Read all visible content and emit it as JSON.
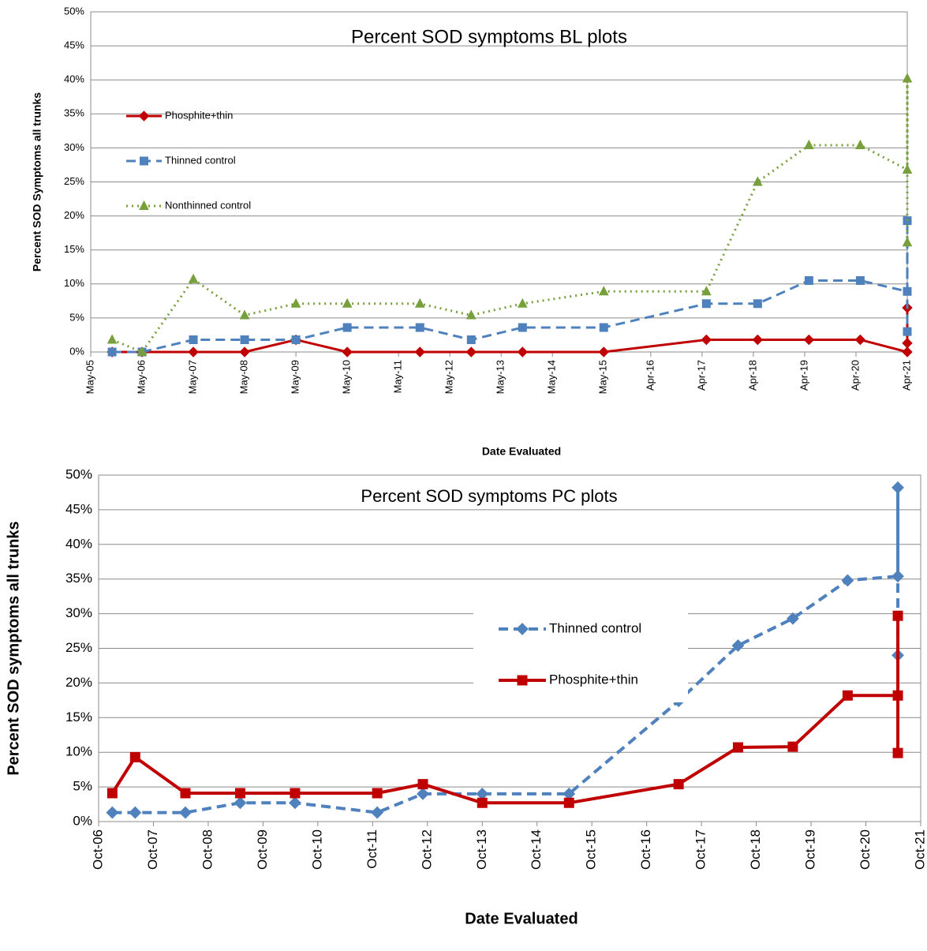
{
  "chart_data": [
    {
      "type": "line",
      "title": "Percent  SOD symptoms BL plots",
      "x_label": "Date Evaluated",
      "y_label": "Percent SOD  Symptoms  all trunks",
      "legend": "upper left",
      "grid": true,
      "x": [
        "2005-10",
        "2006-05",
        "2007-05",
        "2008-05",
        "2009-05",
        "2010-05",
        "2011-10",
        "2012-10",
        "2013-10",
        "2015-05",
        "2017-05",
        "2018-05",
        "2019-05",
        "2020-05",
        "2021-04",
        "2021-04",
        "2021-04"
      ],
      "xlim": [
        "2005-05",
        "2021-04"
      ],
      "xticks": [
        {
          "value": "2005-05",
          "label": "May-05"
        },
        {
          "value": "2006-05",
          "label": "May-06"
        },
        {
          "value": "2007-05",
          "label": "May-07"
        },
        {
          "value": "2008-05",
          "label": "May-08"
        },
        {
          "value": "2009-05",
          "label": "May-09"
        },
        {
          "value": "2010-05",
          "label": "May-10"
        },
        {
          "value": "2011-05",
          "label": "May-11"
        },
        {
          "value": "2012-05",
          "label": "May-12"
        },
        {
          "value": "2013-05",
          "label": "May-13"
        },
        {
          "value": "2014-05",
          "label": "May-14"
        },
        {
          "value": "2015-05",
          "label": "May-15"
        },
        {
          "value": "2016-04",
          "label": "Apr-16"
        },
        {
          "value": "2017-04",
          "label": "Apr-17"
        },
        {
          "value": "2018-04",
          "label": "Apr-18"
        },
        {
          "value": "2019-04",
          "label": "Apr-19"
        },
        {
          "value": "2020-04",
          "label": "Apr-20"
        },
        {
          "value": "2021-04",
          "label": "Apr-21"
        }
      ],
      "ylim": [
        0,
        50
      ],
      "yticks": [
        {
          "value": 0,
          "label": "0%"
        },
        {
          "value": 5,
          "label": "5%"
        },
        {
          "value": 10,
          "label": "10%"
        },
        {
          "value": 15,
          "label": "15%"
        },
        {
          "value": 20,
          "label": "20%"
        },
        {
          "value": 25,
          "label": "25%"
        },
        {
          "value": 30,
          "label": "30%"
        },
        {
          "value": 35,
          "label": "35%"
        },
        {
          "value": 40,
          "label": "40%"
        },
        {
          "value": 45,
          "label": "45%"
        },
        {
          "value": 50,
          "label": "50%"
        }
      ],
      "series": [
        {
          "name": "Phosphite+thin",
          "color": "#c00000",
          "line_style": "solid",
          "marker": "diamond",
          "values": [
            0,
            0,
            0,
            0,
            1.8,
            0,
            0,
            0,
            0,
            0,
            1.8,
            1.8,
            1.8,
            1.8,
            0,
            6.5,
            1.3
          ]
        },
        {
          "name": "Thinned control",
          "color": "#4f81bd",
          "line_style": "dashed",
          "marker": "square",
          "values": [
            0,
            0,
            1.8,
            1.8,
            1.8,
            3.6,
            3.6,
            1.8,
            3.6,
            3.6,
            7.1,
            7.1,
            10.5,
            10.5,
            8.9,
            19.3,
            3.0
          ]
        },
        {
          "name": "Nonthinned control",
          "color": "#77a03c",
          "line_style": "dotted",
          "marker": "triangle",
          "values": [
            1.8,
            0,
            10.7,
            5.4,
            7.1,
            7.1,
            7.1,
            5.4,
            7.1,
            8.9,
            8.9,
            25,
            30.4,
            30.4,
            26.8,
            40.2,
            16.1
          ]
        }
      ]
    },
    {
      "type": "line",
      "title": "Percent  SOD symptoms PC plots",
      "x_label": "Date Evaluated",
      "y_label": "Percent SOD symptoms  all trunks",
      "legend": "center right",
      "grid": true,
      "x": [
        "2007-01",
        "2007-06",
        "2008-05",
        "2009-05",
        "2010-05",
        "2011-11",
        "2012-09",
        "2013-10",
        "2015-05",
        "2017-05",
        "2018-06",
        "2019-06",
        "2020-06",
        "2021-05",
        "2021-05",
        "2021-05"
      ],
      "xlim": [
        "2006-10",
        "2021-10"
      ],
      "xticks": [
        {
          "value": "2006-10",
          "label": "Oct-06"
        },
        {
          "value": "2007-10",
          "label": "Oct-07"
        },
        {
          "value": "2008-10",
          "label": "Oct-08"
        },
        {
          "value": "2009-10",
          "label": "Oct-09"
        },
        {
          "value": "2010-10",
          "label": "Oct-10"
        },
        {
          "value": "2011-10",
          "label": "Oct-11"
        },
        {
          "value": "2012-10",
          "label": "Oct-12"
        },
        {
          "value": "2013-10",
          "label": "Oct-13"
        },
        {
          "value": "2014-10",
          "label": "Oct-14"
        },
        {
          "value": "2015-10",
          "label": "Oct-15"
        },
        {
          "value": "2016-10",
          "label": "Oct-16"
        },
        {
          "value": "2017-10",
          "label": "Oct-17"
        },
        {
          "value": "2018-10",
          "label": "Oct-18"
        },
        {
          "value": "2019-10",
          "label": "Oct-19"
        },
        {
          "value": "2020-10",
          "label": "Oct-20"
        },
        {
          "value": "2021-10",
          "label": "Oct-21"
        }
      ],
      "ylim": [
        0,
        50
      ],
      "yticks": [
        {
          "value": 0,
          "label": "0%"
        },
        {
          "value": 5,
          "label": "5%"
        },
        {
          "value": 10,
          "label": "10%"
        },
        {
          "value": 15,
          "label": "15%"
        },
        {
          "value": 20,
          "label": "20%"
        },
        {
          "value": 25,
          "label": "25%"
        },
        {
          "value": 30,
          "label": "30%"
        },
        {
          "value": 35,
          "label": "35%"
        },
        {
          "value": 40,
          "label": "40%"
        },
        {
          "value": 45,
          "label": "45%"
        },
        {
          "value": 50,
          "label": "50%"
        }
      ],
      "series": [
        {
          "name": "Thinned control",
          "color": "#4f81bd",
          "line_style": "dashed",
          "marker": "diamond",
          "values": [
            1.3,
            1.3,
            1.3,
            2.7,
            2.7,
            1.3,
            4.0,
            4.0,
            4.0,
            17.4,
            25.4,
            29.3,
            34.8,
            35.4,
            48.2,
            24.0
          ]
        },
        {
          "name": "Phosphite+thin",
          "color": "#c00000",
          "line_style": "solid",
          "marker": "square",
          "values": [
            4.1,
            9.3,
            4.1,
            4.1,
            4.1,
            4.1,
            5.4,
            2.7,
            2.7,
            5.4,
            10.7,
            10.8,
            18.2,
            18.2,
            29.7,
            9.9
          ]
        }
      ]
    }
  ]
}
